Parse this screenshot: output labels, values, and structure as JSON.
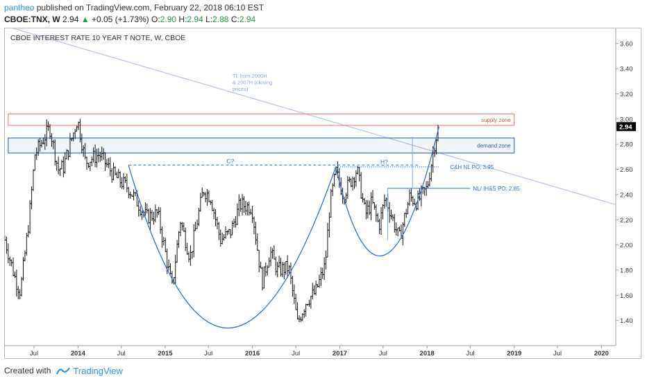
{
  "header": {
    "author": "pantheo",
    "published": "published on TradingView.com, February 22, 2018 06:10 EST",
    "symbol": "CBOE:TNX, W",
    "last": "2.94",
    "change": "+0.05 (+1.73%)",
    "o_label": "O:",
    "o": "2.90",
    "h_label": "H:",
    "h": "2.94",
    "l_label": "L:",
    "l": "2.88",
    "c_label": "C:",
    "c": "2.94"
  },
  "footer": {
    "created_with": "Created with",
    "brand": "TradingView"
  },
  "colors": {
    "bars": "#111111",
    "trendline": "#b7c3e6",
    "supply": "#e57368",
    "demand": "#3b73c9",
    "pattern": "#3570c4",
    "price_tag": "#000000",
    "axis_text": "#333333"
  },
  "chart_data": {
    "type": "bar",
    "title": "CBOE INTEREST RATE 10 YEAR T NOTE, W, CBOE",
    "price_tag": "2.94",
    "x_axis": {
      "range": [
        "2013-03-01",
        "2020-03-01"
      ],
      "ticks": [
        {
          "date": "2013-07-01",
          "label": "Jul"
        },
        {
          "date": "2014-01-01",
          "label": "2014"
        },
        {
          "date": "2014-07-01",
          "label": "Jul"
        },
        {
          "date": "2015-01-01",
          "label": "2015"
        },
        {
          "date": "2015-07-01",
          "label": "Jul"
        },
        {
          "date": "2016-01-01",
          "label": "2016"
        },
        {
          "date": "2016-07-01",
          "label": "Jul"
        },
        {
          "date": "2017-01-01",
          "label": "2017"
        },
        {
          "date": "2017-07-01",
          "label": "Jul"
        },
        {
          "date": "2018-01-01",
          "label": "2018"
        },
        {
          "date": "2018-07-01",
          "label": "Jul"
        },
        {
          "date": "2019-01-01",
          "label": "2019"
        },
        {
          "date": "2019-07-01",
          "label": "Jul"
        },
        {
          "date": "2020-01-01",
          "label": "2020"
        }
      ]
    },
    "y_axis": {
      "range": [
        1.2,
        3.72
      ],
      "ticks": [
        "3.60",
        "3.40",
        "3.20",
        "3.00",
        "2.80",
        "2.60",
        "2.40",
        "2.20",
        "2.00",
        "1.80",
        "1.60",
        "1.40"
      ]
    },
    "series": [
      {
        "type": "ohlc",
        "anchors": [
          [
            "2013-03-01",
            2.04
          ],
          [
            "2013-04-15",
            1.72
          ],
          [
            "2013-05-05",
            1.63
          ],
          [
            "2013-06-10",
            2.2
          ],
          [
            "2013-07-05",
            2.72
          ],
          [
            "2013-09-05",
            2.93
          ],
          [
            "2013-10-10",
            2.6
          ],
          [
            "2013-11-01",
            2.62
          ],
          [
            "2013-12-30",
            3.0
          ],
          [
            "2014-02-01",
            2.66
          ],
          [
            "2014-04-01",
            2.72
          ],
          [
            "2014-06-01",
            2.55
          ],
          [
            "2014-08-01",
            2.45
          ],
          [
            "2014-10-15",
            2.22
          ],
          [
            "2014-12-01",
            2.25
          ],
          [
            "2015-01-30",
            1.66
          ],
          [
            "2015-03-05",
            2.2
          ],
          [
            "2015-04-15",
            1.9
          ],
          [
            "2015-06-10",
            2.44
          ],
          [
            "2015-07-10",
            2.38
          ],
          [
            "2015-08-20",
            2.04
          ],
          [
            "2015-10-01",
            2.1
          ],
          [
            "2015-11-10",
            2.32
          ],
          [
            "2015-12-30",
            2.3
          ],
          [
            "2016-02-10",
            1.7
          ],
          [
            "2016-03-15",
            1.95
          ],
          [
            "2016-04-15",
            1.8
          ],
          [
            "2016-06-01",
            1.82
          ],
          [
            "2016-07-08",
            1.38
          ],
          [
            "2016-08-15",
            1.56
          ],
          [
            "2016-09-20",
            1.62
          ],
          [
            "2016-11-01",
            1.84
          ],
          [
            "2016-11-20",
            2.32
          ],
          [
            "2016-12-16",
            2.58
          ],
          [
            "2017-01-15",
            2.4
          ],
          [
            "2017-03-14",
            2.6
          ],
          [
            "2017-04-18",
            2.24
          ],
          [
            "2017-05-15",
            2.34
          ],
          [
            "2017-06-14",
            2.15
          ],
          [
            "2017-07-10",
            2.38
          ],
          [
            "2017-09-07",
            2.05
          ],
          [
            "2017-10-20",
            2.38
          ],
          [
            "2017-11-20",
            2.34
          ],
          [
            "2018-01-01",
            2.45
          ],
          [
            "2018-02-05",
            2.84
          ],
          [
            "2018-02-22",
            2.94
          ]
        ]
      }
    ],
    "annotations": {
      "trendline_label": [
        "TL from 2000H",
        "& 2007H (closing",
        "prices)"
      ],
      "trendline_points": [
        [
          "2013-03-01",
          3.74
        ],
        [
          "2020-03-01",
          2.32
        ]
      ],
      "supply_zone": {
        "label": "supply zone",
        "x": [
          "2013-03-15",
          "2019-01-01"
        ],
        "y": [
          2.95,
          3.04
        ]
      },
      "demand_zone": {
        "label": "demand zone",
        "x": [
          "2013-03-15",
          "2019-01-01"
        ],
        "y": [
          2.73,
          2.85
        ]
      },
      "cup_label": "C?",
      "cup_neckline": {
        "x": [
          "2014-08-01",
          "2017-12-01"
        ],
        "y": 2.635
      },
      "cup_curve": [
        [
          "2014-08-01",
          2.63
        ],
        [
          "2015-09-01",
          1.34
        ],
        [
          "2016-12-15",
          2.62
        ]
      ],
      "handle_label": "H?",
      "handle_curve": [
        [
          "2016-12-15",
          2.62
        ],
        [
          "2017-06-25",
          1.92
        ],
        [
          "2018-02-20",
          2.94
        ]
      ],
      "ch_target": {
        "label": "C&H NL PO: 3.95",
        "x": [
          "2016-12-15",
          "2018-02-20"
        ],
        "y": 2.62
      },
      "ihs_line": {
        "label": "NL/ IH&S PO: 2.85",
        "x": [
          "2017-07-20",
          "2018-07-01"
        ],
        "y": 2.45
      },
      "vertical_markers": [
        {
          "x": "2017-07-20",
          "y": [
            2.04,
            2.45
          ]
        },
        {
          "x": "2017-11-01",
          "y": [
            2.45,
            2.86
          ]
        }
      ]
    }
  }
}
